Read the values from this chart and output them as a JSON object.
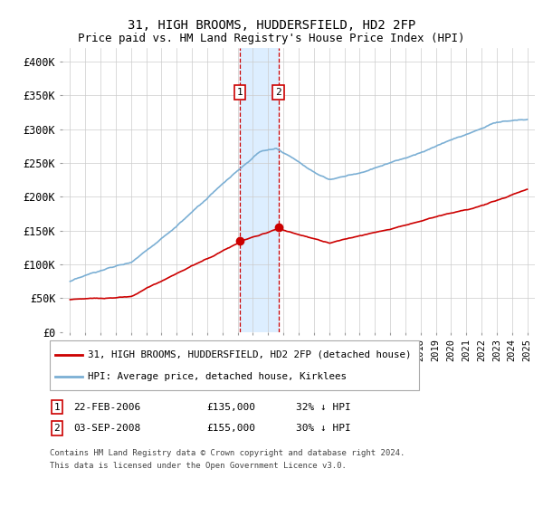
{
  "title": "31, HIGH BROOMS, HUDDERSFIELD, HD2 2FP",
  "subtitle": "Price paid vs. HM Land Registry's House Price Index (HPI)",
  "ylim": [
    0,
    420000
  ],
  "yticks": [
    0,
    50000,
    100000,
    150000,
    200000,
    250000,
    300000,
    350000,
    400000
  ],
  "ytick_labels": [
    "£0",
    "£50K",
    "£100K",
    "£150K",
    "£200K",
    "£250K",
    "£300K",
    "£350K",
    "£400K"
  ],
  "hpi_color": "#7bafd4",
  "price_color": "#cc0000",
  "transaction1_date": "22-FEB-2006",
  "transaction1_price": "£135,000",
  "transaction1_pct": "32% ↓ HPI",
  "transaction1_year": 2006.12,
  "transaction2_date": "03-SEP-2008",
  "transaction2_price": "£155,000",
  "transaction2_pct": "30% ↓ HPI",
  "transaction2_year": 2008.67,
  "legend_line1": "31, HIGH BROOMS, HUDDERSFIELD, HD2 2FP (detached house)",
  "legend_line2": "HPI: Average price, detached house, Kirklees",
  "footnote1": "Contains HM Land Registry data © Crown copyright and database right 2024.",
  "footnote2": "This data is licensed under the Open Government Licence v3.0.",
  "background_color": "#ffffff",
  "grid_color": "#cccccc",
  "highlight_color": "#ddeeff"
}
